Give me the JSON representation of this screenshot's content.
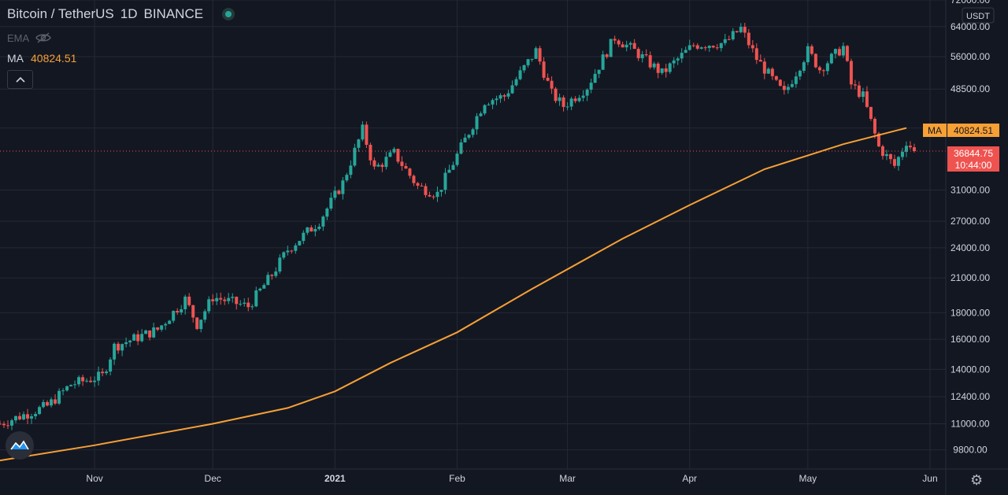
{
  "legend": {
    "symbol": "Bitcoin / TetherUS",
    "interval": "1D",
    "exchange": "BINANCE",
    "ema_label": "EMA",
    "ma_label": "MA",
    "ma_value": "40824.51"
  },
  "axis": {
    "currency": "USDT",
    "price_ticks": [
      "72000.00",
      "64000.00",
      "56000.00",
      "48500.00",
      "40824.51",
      "31000.00",
      "27000.00",
      "24000.00",
      "21000.00",
      "18000.00",
      "16000.00",
      "14000.00",
      "12400.00",
      "11000.00",
      "9800.00"
    ],
    "month_ticks": [
      "Nov",
      "Dec",
      "2021",
      "Feb",
      "Mar",
      "Apr",
      "May",
      "Jun"
    ]
  },
  "badges": {
    "ma_label": "MA",
    "ma_value": "40824.51",
    "price": "36844.75",
    "countdown": "10:44:00"
  },
  "colors": {
    "background": "#131722",
    "up": "#26a69a",
    "down": "#ef5350",
    "ma": "#f7a035",
    "grid": "#2a2e39"
  },
  "icons": {
    "logo": "tradingview-logo-icon",
    "settings": "gear-icon",
    "visibility": "eye-off-icon",
    "collapse": "chevron-up-icon"
  },
  "chart_data": {
    "type": "candlestick",
    "scale": "log",
    "ylim": [
      9000,
      72000
    ],
    "x_range": [
      "2020-10-08",
      "2021-06-05"
    ],
    "last_price": 36844.75,
    "ma": {
      "name": "MA",
      "value": 40824.51,
      "points": [
        [
          "2020-10-08",
          9350
        ],
        [
          "2020-11-01",
          10000
        ],
        [
          "2020-12-01",
          11000
        ],
        [
          "2020-12-20",
          11800
        ],
        [
          "2021-01-01",
          12700
        ],
        [
          "2021-01-15",
          14400
        ],
        [
          "2021-02-01",
          16500
        ],
        [
          "2021-02-20",
          20000
        ],
        [
          "2021-03-15",
          25000
        ],
        [
          "2021-04-01",
          29000
        ],
        [
          "2021-04-20",
          34000
        ],
        [
          "2021-05-10",
          38000
        ],
        [
          "2021-05-26",
          40824.51
        ]
      ]
    },
    "close_anchors": [
      [
        "2020-10-08",
        11000
      ],
      [
        "2020-10-20",
        11900
      ],
      [
        "2020-10-26",
        13100
      ],
      [
        "2020-11-03",
        13600
      ],
      [
        "2020-11-06",
        15500
      ],
      [
        "2020-11-17",
        16700
      ],
      [
        "2020-11-24",
        19100
      ],
      [
        "2020-11-27",
        17100
      ],
      [
        "2020-12-01",
        19300
      ],
      [
        "2020-12-10",
        18500
      ],
      [
        "2020-12-16",
        21300
      ],
      [
        "2020-12-20",
        23800
      ],
      [
        "2020-12-28",
        27000
      ],
      [
        "2021-01-03",
        32000
      ],
      [
        "2021-01-08",
        40500
      ],
      [
        "2021-01-11",
        34000
      ],
      [
        "2021-01-16",
        36500
      ],
      [
        "2021-01-22",
        31500
      ],
      [
        "2021-01-27",
        30500
      ],
      [
        "2021-02-08",
        46000
      ],
      [
        "2021-02-13",
        47000
      ],
      [
        "2021-02-21",
        57500
      ],
      [
        "2021-02-25",
        47500
      ],
      [
        "2021-02-28",
        45000
      ],
      [
        "2021-03-06",
        49000
      ],
      [
        "2021-03-13",
        61000
      ],
      [
        "2021-03-18",
        57500
      ],
      [
        "2021-03-25",
        52000
      ],
      [
        "2021-04-02",
        59000
      ],
      [
        "2021-04-10",
        59500
      ],
      [
        "2021-04-14",
        63500
      ],
      [
        "2021-04-18",
        55500
      ],
      [
        "2021-04-23",
        49500
      ],
      [
        "2021-04-25",
        47500
      ],
      [
        "2021-05-01",
        57500
      ],
      [
        "2021-05-04",
        53000
      ],
      [
        "2021-05-10",
        58500
      ],
      [
        "2021-05-12",
        49500
      ],
      [
        "2021-05-15",
        47000
      ],
      [
        "2021-05-19",
        37500
      ],
      [
        "2021-05-23",
        34500
      ],
      [
        "2021-05-26",
        38500
      ],
      [
        "2021-05-28",
        36844.75
      ]
    ]
  }
}
